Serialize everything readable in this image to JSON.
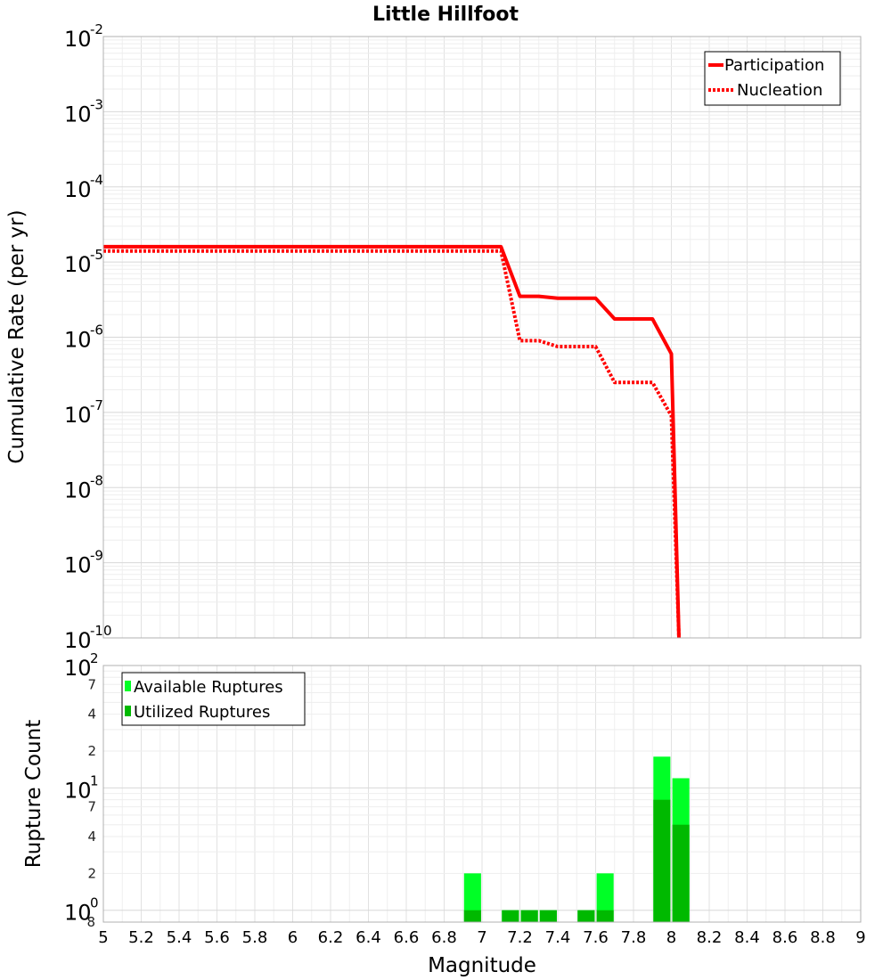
{
  "chart_data": [
    {
      "type": "line",
      "title": "Little Hillfoot",
      "xlabel": "",
      "ylabel": "Cumulative Rate (per yr)",
      "yscale": "log",
      "xlim": [
        5,
        9
      ],
      "ylim": [
        1e-10,
        0.01
      ],
      "y_tick_bases": [
        "10",
        "10",
        "10",
        "10",
        "10",
        "10",
        "10",
        "10",
        "10"
      ],
      "y_tick_exponents": [
        "-2",
        "-3",
        "-4",
        "-5",
        "-6",
        "-7",
        "-8",
        "-9",
        "-10"
      ],
      "y_tick_values": [
        0.01,
        0.001,
        0.0001,
        1e-05,
        1e-06,
        1e-07,
        1e-08,
        1e-09,
        1e-10
      ],
      "grid": true,
      "legend_position": "top-right",
      "series": [
        {
          "name": "Participation",
          "style": "solid",
          "color": "#ff0000",
          "x": [
            5.0,
            7.1,
            7.2,
            7.3,
            7.4,
            7.5,
            7.6,
            7.7,
            7.8,
            7.9,
            8.0,
            8.04
          ],
          "y": [
            1.6e-05,
            1.6e-05,
            3.5e-06,
            3.5e-06,
            3.3e-06,
            3.3e-06,
            3.3e-06,
            1.75e-06,
            1.75e-06,
            1.75e-06,
            6e-07,
            1e-10
          ]
        },
        {
          "name": "Nucleation",
          "style": "dotted",
          "color": "#ff0000",
          "x": [
            5.0,
            7.1,
            7.2,
            7.3,
            7.4,
            7.5,
            7.6,
            7.7,
            7.8,
            7.9,
            8.0,
            8.04
          ],
          "y": [
            1.4e-05,
            1.4e-05,
            9e-07,
            9e-07,
            7.5e-07,
            7.5e-07,
            7.5e-07,
            2.5e-07,
            2.5e-07,
            2.5e-07,
            9e-08,
            1e-10
          ]
        }
      ]
    },
    {
      "type": "bar",
      "xlabel": "Magnitude",
      "ylabel": "Rupture Count",
      "yscale": "log",
      "xlim": [
        5,
        9
      ],
      "ylim": [
        0.8,
        100
      ],
      "x_ticks": [
        "5",
        "5.2",
        "5.4",
        "5.6",
        "5.8",
        "6",
        "6.2",
        "6.4",
        "6.6",
        "6.8",
        "7",
        "7.2",
        "7.4",
        "7.6",
        "7.8",
        "8",
        "8.2",
        "8.4",
        "8.6",
        "8.8",
        "9"
      ],
      "y_major_bases": [
        "10",
        "10",
        "10"
      ],
      "y_major_exponents": [
        "0",
        "1",
        "2"
      ],
      "y_major_values": [
        1,
        10,
        100
      ],
      "y_minor_ticks": [
        "2",
        "4",
        "7",
        "2",
        "4",
        "7"
      ],
      "y_minor_values": [
        2,
        4,
        7,
        20,
        40,
        70
      ],
      "y_min_label": "8",
      "grid": true,
      "legend_position": "top-left",
      "bar_width": 0.09,
      "series": [
        {
          "name": "Available Ruptures",
          "color": "#00ff26",
          "x": [
            6.95,
            7.15,
            7.25,
            7.35,
            7.55,
            7.65,
            7.95,
            8.05
          ],
          "values": [
            2,
            1,
            1,
            1,
            1,
            2,
            18,
            12
          ]
        },
        {
          "name": "Utilized Ruptures",
          "color": "#00b900",
          "x": [
            6.95,
            7.15,
            7.25,
            7.35,
            7.55,
            7.65,
            7.95,
            8.05
          ],
          "values": [
            1,
            1,
            1,
            1,
            1,
            1,
            8,
            5
          ]
        }
      ]
    }
  ]
}
